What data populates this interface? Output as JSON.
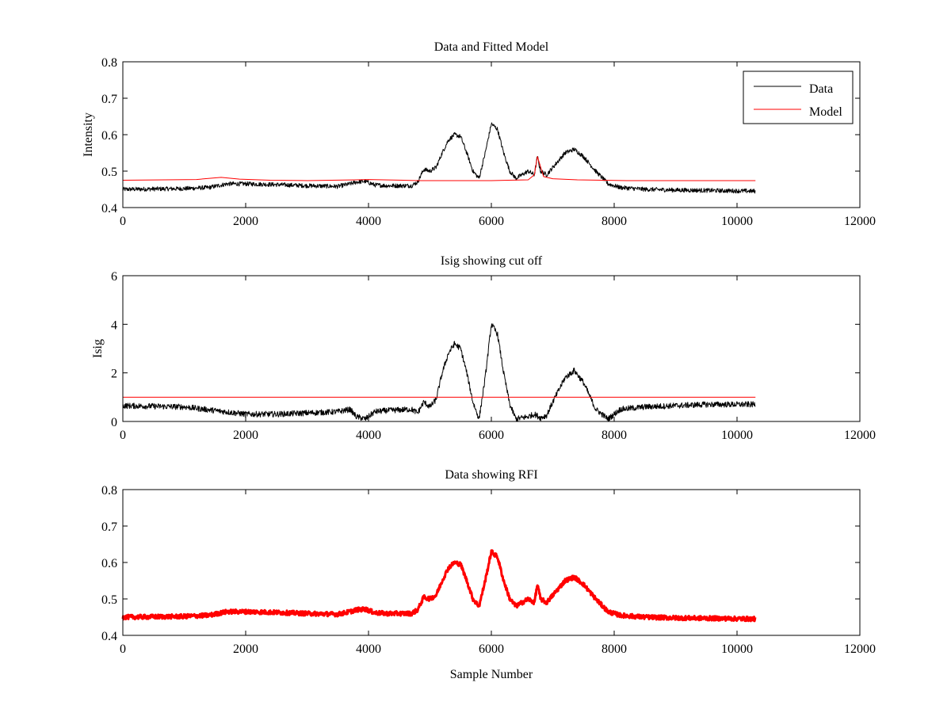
{
  "figure": {
    "background": "#ffffff"
  },
  "colors": {
    "data": "#000000",
    "model": "#ff0000",
    "rfi": "#ff0000",
    "axes": "#000000"
  },
  "chart_data": [
    {
      "type": "line",
      "title": "Data and Fitted Model",
      "xlabel": "",
      "ylabel": "Intensity",
      "xlim": [
        0,
        12000
      ],
      "ylim": [
        0.4,
        0.8
      ],
      "xticks": [
        0,
        2000,
        4000,
        6000,
        8000,
        10000,
        12000
      ],
      "xtick_labels": [
        "0",
        "2000",
        "4000",
        "6000",
        "8000",
        "10000",
        "12000"
      ],
      "yticks": [
        0.4,
        0.5,
        0.6,
        0.7,
        0.8
      ],
      "ytick_labels": [
        "0.4",
        "0.5",
        "0.6",
        "0.7",
        "0.8"
      ],
      "grid": false,
      "legend": {
        "position": "top-right",
        "entries": [
          "Data",
          "Model"
        ]
      },
      "series": [
        {
          "name": "Data",
          "color": "#000000",
          "noise": 0.006,
          "x": [
            0,
            1000,
            1400,
            1700,
            2000,
            2500,
            3000,
            3500,
            3700,
            3800,
            3950,
            4100,
            4300,
            4700,
            4800,
            4900,
            5000,
            5100,
            5200,
            5300,
            5400,
            5500,
            5600,
            5700,
            5800,
            5900,
            6000,
            6100,
            6200,
            6300,
            6400,
            6500,
            6600,
            6700,
            6750,
            6800,
            6900,
            7000,
            7200,
            7350,
            7500,
            7700,
            7900,
            8100,
            8500,
            9000,
            9500,
            10300
          ],
          "y": [
            0.45,
            0.452,
            0.455,
            0.465,
            0.465,
            0.463,
            0.46,
            0.458,
            0.465,
            0.47,
            0.472,
            0.462,
            0.46,
            0.46,
            0.47,
            0.505,
            0.5,
            0.51,
            0.55,
            0.585,
            0.6,
            0.595,
            0.55,
            0.5,
            0.48,
            0.55,
            0.63,
            0.615,
            0.55,
            0.5,
            0.48,
            0.49,
            0.5,
            0.49,
            0.54,
            0.5,
            0.49,
            0.51,
            0.55,
            0.56,
            0.54,
            0.5,
            0.465,
            0.455,
            0.45,
            0.448,
            0.447,
            0.445
          ]
        },
        {
          "name": "Model",
          "color": "#ff0000",
          "noise": 0,
          "x": [
            0,
            1200,
            1600,
            1900,
            2400,
            3000,
            3800,
            4000,
            4800,
            6000,
            6600,
            6700,
            6750,
            6850,
            7000,
            7400,
            7800,
            8200,
            10300
          ],
          "y": [
            0.475,
            0.477,
            0.483,
            0.478,
            0.475,
            0.474,
            0.476,
            0.477,
            0.474,
            0.474,
            0.476,
            0.49,
            0.54,
            0.485,
            0.479,
            0.476,
            0.475,
            0.474,
            0.474
          ]
        }
      ]
    },
    {
      "type": "line",
      "title": "Isig showing cut off",
      "xlabel": "",
      "ylabel": "Isig",
      "xlim": [
        0,
        12000
      ],
      "ylim": [
        0,
        6
      ],
      "xticks": [
        0,
        2000,
        4000,
        6000,
        8000,
        10000,
        12000
      ],
      "xtick_labels": [
        "0",
        "2000",
        "4000",
        "6000",
        "8000",
        "10000",
        "12000"
      ],
      "yticks": [
        0,
        2,
        4,
        6
      ],
      "ytick_labels": [
        "0",
        "2",
        "4",
        "6"
      ],
      "grid": false,
      "series": [
        {
          "color": "#000000",
          "noise": 0.12,
          "x": [
            0,
            1000,
            1500,
            2000,
            2500,
            3000,
            3500,
            3700,
            3800,
            3950,
            4100,
            4300,
            4700,
            4800,
            4900,
            5000,
            5100,
            5200,
            5300,
            5400,
            5500,
            5600,
            5700,
            5800,
            5900,
            6000,
            6100,
            6200,
            6300,
            6400,
            6500,
            6600,
            6700,
            6800,
            6900,
            7000,
            7200,
            7350,
            7500,
            7700,
            7900,
            8100,
            8500,
            9000,
            9500,
            10300
          ],
          "y": [
            0.65,
            0.6,
            0.45,
            0.3,
            0.3,
            0.35,
            0.4,
            0.5,
            0.2,
            0.1,
            0.4,
            0.45,
            0.5,
            0.35,
            0.8,
            0.6,
            0.9,
            2.0,
            2.8,
            3.2,
            3.0,
            2.0,
            0.8,
            0.1,
            1.8,
            4.0,
            3.6,
            2.0,
            0.7,
            0.1,
            0.15,
            0.2,
            0.3,
            0.15,
            0.25,
            0.8,
            1.8,
            2.1,
            1.6,
            0.5,
            0.1,
            0.5,
            0.6,
            0.65,
            0.7,
            0.7
          ]
        },
        {
          "color": "#ff0000",
          "noise": 0,
          "x": [
            0,
            10300
          ],
          "y": [
            1.0,
            1.0
          ]
        }
      ]
    },
    {
      "type": "line",
      "title": "Data showing RFI",
      "xlabel": "Sample Number",
      "ylabel": "",
      "xlim": [
        0,
        12000
      ],
      "ylim": [
        0.4,
        0.8
      ],
      "xticks": [
        0,
        2000,
        4000,
        6000,
        8000,
        10000,
        12000
      ],
      "xtick_labels": [
        "0",
        "2000",
        "4000",
        "6000",
        "8000",
        "10000",
        "12000"
      ],
      "yticks": [
        0.4,
        0.5,
        0.6,
        0.7,
        0.8
      ],
      "ytick_labels": [
        "0.4",
        "0.5",
        "0.6",
        "0.7",
        "0.8"
      ],
      "grid": false,
      "series": [
        {
          "color": "#ff0000",
          "noise": 0.006,
          "thick": true,
          "x": [
            0,
            1000,
            1400,
            1700,
            2000,
            2500,
            3000,
            3500,
            3700,
            3800,
            3950,
            4100,
            4300,
            4700,
            4800,
            4900,
            5000,
            5100,
            5200,
            5300,
            5400,
            5500,
            5600,
            5700,
            5800,
            5900,
            6000,
            6100,
            6200,
            6300,
            6400,
            6500,
            6600,
            6700,
            6750,
            6800,
            6900,
            7000,
            7200,
            7350,
            7500,
            7700,
            7900,
            8100,
            8500,
            9000,
            9500,
            10300
          ],
          "y": [
            0.45,
            0.452,
            0.455,
            0.465,
            0.465,
            0.463,
            0.46,
            0.458,
            0.465,
            0.47,
            0.472,
            0.462,
            0.46,
            0.46,
            0.47,
            0.505,
            0.5,
            0.51,
            0.55,
            0.585,
            0.6,
            0.595,
            0.55,
            0.5,
            0.48,
            0.55,
            0.63,
            0.615,
            0.55,
            0.5,
            0.48,
            0.49,
            0.5,
            0.49,
            0.54,
            0.5,
            0.49,
            0.51,
            0.55,
            0.56,
            0.54,
            0.5,
            0.465,
            0.455,
            0.45,
            0.448,
            0.447,
            0.445
          ]
        }
      ]
    }
  ]
}
